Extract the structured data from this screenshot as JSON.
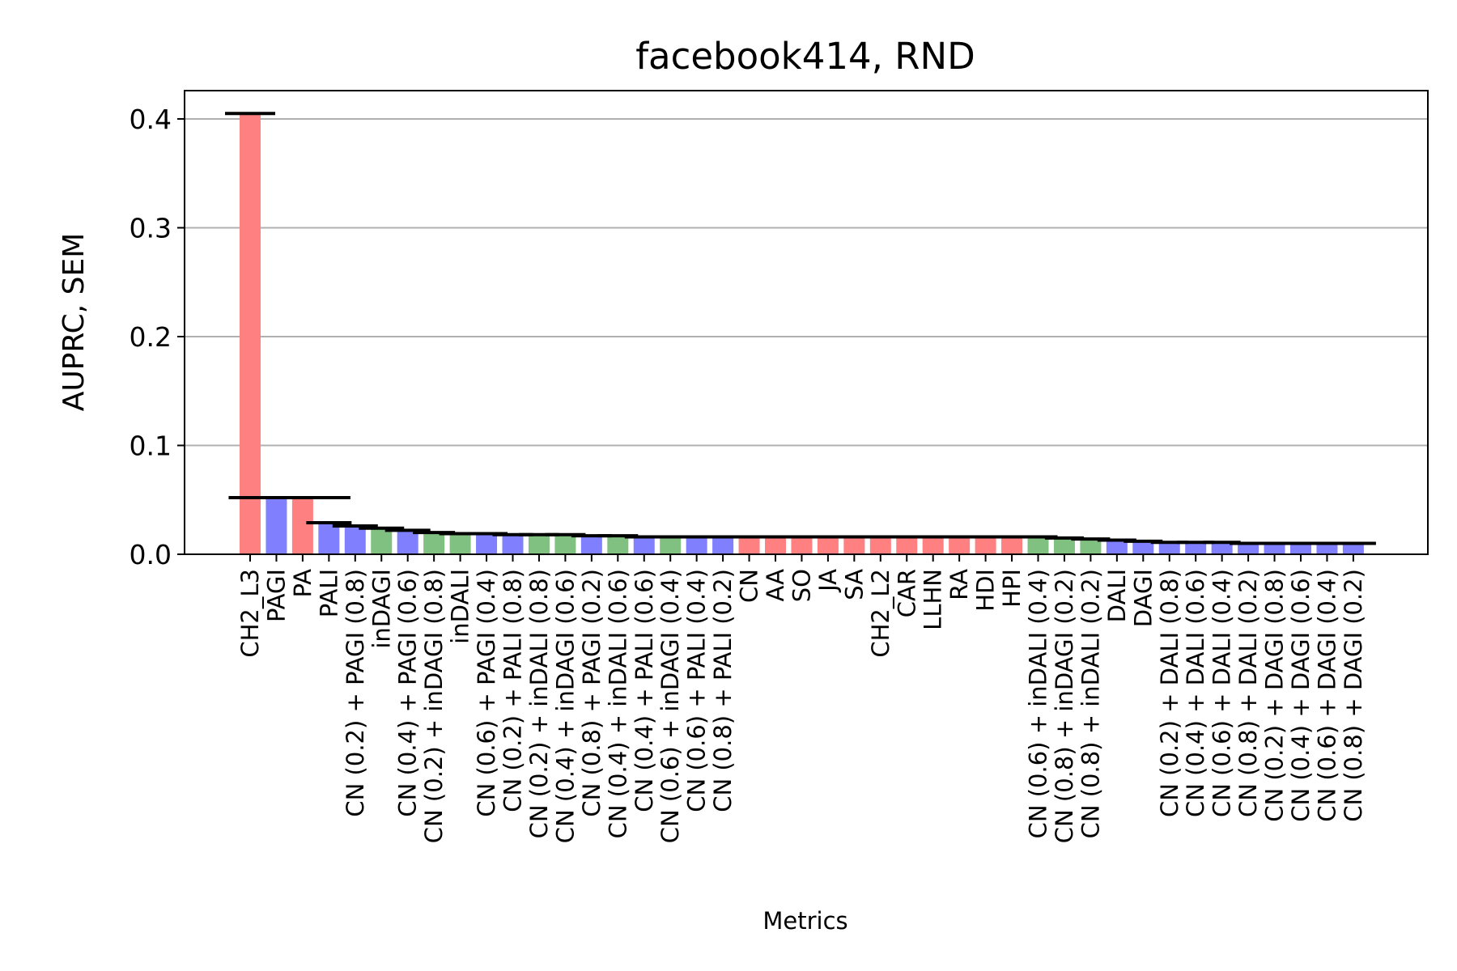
{
  "chart_data": {
    "type": "bar",
    "title": "facebook414, RND",
    "xlabel": "Metrics",
    "ylabel": "AUPRC, SEM",
    "ylim": [
      0,
      0.426
    ],
    "yticks": [
      "0.0",
      "0.1",
      "0.2",
      "0.3",
      "0.4"
    ],
    "grid": "y",
    "colors": {
      "red": "#ff8080",
      "blue": "#8080ff",
      "green": "#80c080",
      "error": "#000000"
    },
    "categories": [
      "CH2_L3",
      "PAGI",
      "PA",
      "PALI",
      "CN (0.2) + PAGI (0.8)",
      "inDAGI",
      "CN (0.4) + PAGI (0.6)",
      "CN (0.2) + inDAGI (0.8)",
      "inDALI",
      "CN (0.6) + PAGI (0.4)",
      "CN (0.2) + PALI (0.8)",
      "CN (0.2) + inDALI (0.8)",
      "CN (0.4) + inDAGI (0.6)",
      "CN (0.8) + PAGI (0.2)",
      "CN (0.4) + inDALI (0.6)",
      "CN (0.4) + PALI (0.6)",
      "CN (0.6) + inDAGI (0.4)",
      "CN (0.6) + PALI (0.4)",
      "CN (0.8) + PALI (0.2)",
      "CN",
      "AA",
      "SO",
      "JA",
      "SA",
      "CH2_L2",
      "CAR",
      "LLHN",
      "RA",
      "HDI",
      "HPI",
      "CN (0.6) + inDALI (0.4)",
      "CN (0.8) + inDAGI (0.2)",
      "CN (0.8) + inDALI (0.2)",
      "DALI",
      "DAGI",
      "CN (0.2) + DALI (0.8)",
      "CN (0.4) + DALI (0.6)",
      "CN (0.6) + DALI (0.4)",
      "CN (0.8) + DALI (0.2)",
      "CN (0.2) + DAGI (0.8)",
      "CN (0.4) + DAGI (0.6)",
      "CN (0.6) + DAGI (0.4)",
      "CN (0.8) + DAGI (0.2)"
    ],
    "values": [
      0.405,
      0.052,
      0.052,
      0.029,
      0.026,
      0.024,
      0.022,
      0.02,
      0.019,
      0.019,
      0.018,
      0.018,
      0.018,
      0.017,
      0.017,
      0.016,
      0.016,
      0.016,
      0.016,
      0.016,
      0.016,
      0.016,
      0.016,
      0.016,
      0.016,
      0.016,
      0.016,
      0.016,
      0.016,
      0.016,
      0.016,
      0.015,
      0.014,
      0.013,
      0.012,
      0.011,
      0.011,
      0.011,
      0.01,
      0.01,
      0.01,
      0.01,
      0.01
    ],
    "errors": [
      0.03,
      0.086,
      0.086,
      0.024,
      0.024,
      0.024,
      0.024,
      0.02,
      0.02,
      0.02,
      0.018,
      0.018,
      0.018,
      0.018,
      0.018,
      0.016,
      0.016,
      0.016,
      0.016,
      0.016,
      0.016,
      0.016,
      0.016,
      0.016,
      0.016,
      0.016,
      0.016,
      0.016,
      0.016,
      0.016,
      0.016,
      0.016,
      0.016,
      0.016,
      0.016,
      0.014,
      0.014,
      0.014,
      0.014,
      0.014,
      0.014,
      0.014,
      0.024
    ],
    "bar_colors": [
      "red",
      "blue",
      "red",
      "blue",
      "blue",
      "green",
      "blue",
      "green",
      "green",
      "blue",
      "blue",
      "green",
      "green",
      "blue",
      "green",
      "blue",
      "green",
      "blue",
      "blue",
      "red",
      "red",
      "red",
      "red",
      "red",
      "red",
      "red",
      "red",
      "red",
      "red",
      "red",
      "green",
      "green",
      "green",
      "blue",
      "blue",
      "blue",
      "blue",
      "blue",
      "blue",
      "blue",
      "blue",
      "blue",
      "blue"
    ]
  }
}
